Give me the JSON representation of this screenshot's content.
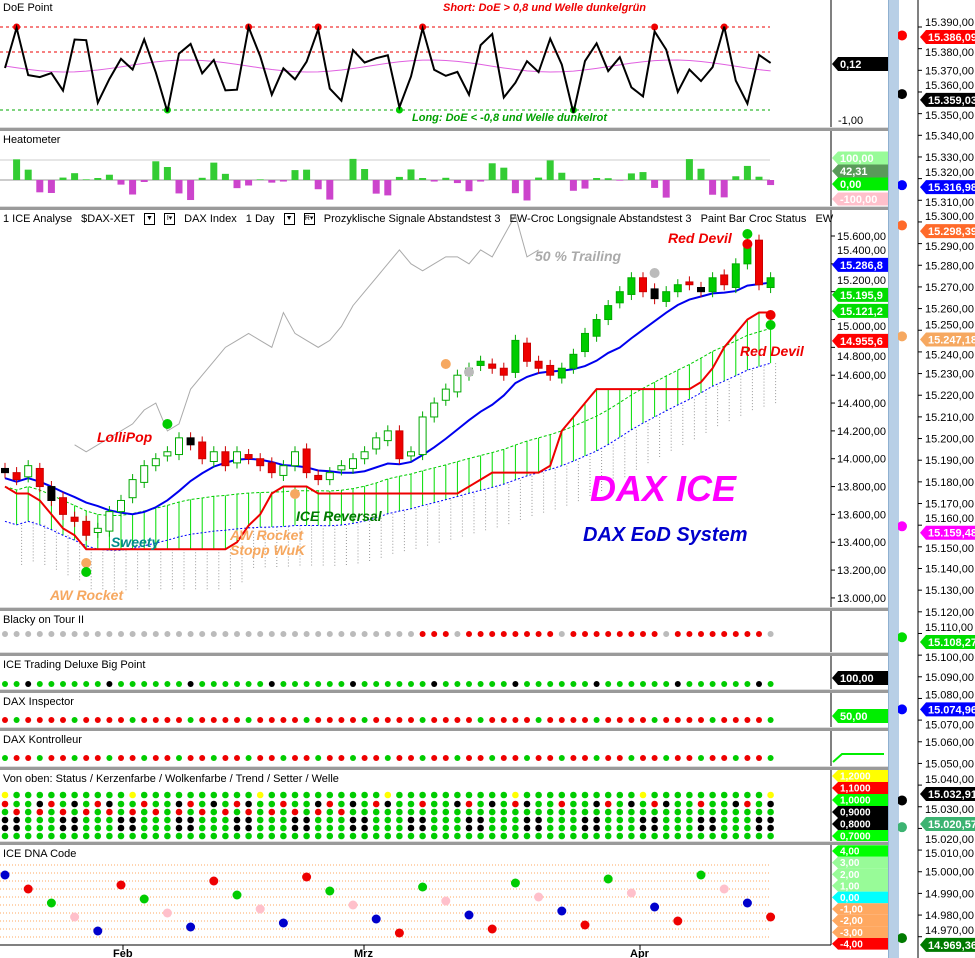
{
  "panels": {
    "doe": {
      "title": "DoE Point",
      "short": "Short: DoE > 0,8 und Welle dunkelgrün",
      "long": "Long: DoE < -0,8 und Welle dunkelrot",
      "badge": "0,12",
      "tick": "-1,00"
    },
    "heat": {
      "title": "Heatometer",
      "badges": [
        "100,00",
        "42,31",
        "0,00",
        "-100,00"
      ]
    },
    "blacky": {
      "title": "Blacky on Tour II"
    },
    "bigpoint": {
      "title": "ICE Trading Deluxe Big Point",
      "badge": "100,00"
    },
    "inspector": {
      "title": "DAX Inspector",
      "badge": "50,00"
    },
    "kontrolleur": {
      "title": "DAX Kontrolleur"
    },
    "vonoben": {
      "title": "Von oben: Status / Kerzenfarbe / Wolkenfarbe / Trend / Setter / Welle",
      "badges": [
        {
          "t": "1,2000",
          "c": "#ffff00"
        },
        {
          "t": "1,1000",
          "c": "#ff0000"
        },
        {
          "t": "1,0000",
          "c": "#00ff00"
        },
        {
          "t": "0,9000",
          "c": "#000000"
        },
        {
          "t": "0,8000",
          "c": "#000000"
        },
        {
          "t": "0,7000",
          "c": "#00ff00"
        }
      ]
    },
    "dna": {
      "title": "ICE DNA Code",
      "badges": [
        {
          "t": "4,00",
          "c": "#00ff00"
        },
        {
          "t": "3,00",
          "c": "#98fb98"
        },
        {
          "t": "2,00",
          "c": "#98fb98"
        },
        {
          "t": "1,00",
          "c": "#98fb98"
        },
        {
          "t": "0,00",
          "c": "#00ffff"
        },
        {
          "t": "-1,00",
          "c": "#ffa860"
        },
        {
          "t": "-2,00",
          "c": "#ffa860"
        },
        {
          "t": "-3,00",
          "c": "#ffa860"
        },
        {
          "t": "-4,00",
          "c": "#ff0000"
        }
      ]
    }
  },
  "toolbar": {
    "items": [
      "1 ICE Analyse",
      "$DAX-XET",
      "DAX Index",
      "1 Day",
      "Prozyklische Signale Abstandstest 3",
      "EW-Croc Longsignale Abstandstest 3",
      "Paint Bar Croc Status",
      "EW"
    ]
  },
  "annotations": {
    "red_devil_top": "Red Devil",
    "red_devil_right": "Red Devil",
    "trailing": "50 % Trailing",
    "lollipop": "LolliPop",
    "sweety": "Sweety",
    "aw_rocket": "AW Rocket",
    "aw_rocket_stopp": "AW Rocket",
    "stopp_wuk": "Stopp WuK",
    "ice_reversal": "ICE Reversal",
    "dax_ice": "DAX ICE",
    "dax_eod": "DAX EoD System"
  },
  "main_axis": {
    "ticks": [
      "15.600,00",
      "15.400,00",
      "15.200,00",
      "15.000,00",
      "14.800,00",
      "14.600,00",
      "14.400,00",
      "14.200,00",
      "14.000,00",
      "13.800,00",
      "13.600,00",
      "13.400,00",
      "13.200,00",
      "13.000,00"
    ],
    "badges": [
      {
        "t": "15.286,8",
        "c": "#0000ff",
        "v": 15286.8
      },
      {
        "t": "15.195,9",
        "c": "#00dd00",
        "v": 15195.9
      },
      {
        "t": "15.121,2",
        "c": "#00dd00",
        "v": 15121.2
      },
      {
        "t": "14.955,6",
        "c": "#ff0000",
        "v": 14955.6
      }
    ]
  },
  "x_axis": {
    "labels": [
      "Feb",
      "Mrz",
      "Apr"
    ]
  },
  "right_axis": {
    "ticks": [
      "15.390,00",
      "15.380,00",
      "15.370,00",
      "15.360,00",
      "15.350,00",
      "15.340,00",
      "15.330,00",
      "15.320,00",
      "15.310,00",
      "15.300,00",
      "15.290,00",
      "15.280,00",
      "15.270,00",
      "15.260,00",
      "15.250,00",
      "15.240,00",
      "15.230,00",
      "15.220,00",
      "15.210,00",
      "15.200,00",
      "15.190,00",
      "15.180,00",
      "15.170,00",
      "15.160,00",
      "15.150,00",
      "15.140,00",
      "15.130,00",
      "15.120,00",
      "15.110,00",
      "15.100,00",
      "15.090,00",
      "15.080,00",
      "15.070,00",
      "15.060,00",
      "15.050,00",
      "15.040,00",
      "15.030,00",
      "15.020,00",
      "15.010,00",
      "15.000,00",
      "14.990,00",
      "14.980,00",
      "14.970,00"
    ],
    "levels": [
      {
        "t": "15.386,09",
        "c": "#ff0000",
        "v": 15386.09
      },
      {
        "t": "15.359,03",
        "c": "#000000",
        "v": 15359.03
      },
      {
        "t": "15.316,98",
        "c": "#0000ff",
        "v": 15316.98
      },
      {
        "t": "15.298,39",
        "c": "#ff6a2a",
        "v": 15298.39
      },
      {
        "t": "15.247,18",
        "c": "#f6a860",
        "v": 15247.18
      },
      {
        "t": "15.159,48",
        "c": "#ff00ff",
        "v": 15159.48
      },
      {
        "t": "15.108,27",
        "c": "#00dd00",
        "v": 15108.27
      },
      {
        "t": "15.074,96",
        "c": "#0000ff",
        "v": 15074.96
      },
      {
        "t": "15.032,91",
        "c": "#000000",
        "v": 15032.91
      },
      {
        "t": "15.020,57",
        "c": "#3cb371",
        "v": 15020.57
      },
      {
        "t": "14.969,36",
        "c": "#007a00",
        "v": 14969.36
      }
    ]
  },
  "chart_data": {
    "type": "candlestick",
    "title": "",
    "xlabel": "",
    "ylabel": "",
    "x_labels": [
      "Feb",
      "Mrz",
      "Apr"
    ],
    "ylim": [
      13000,
      15600
    ],
    "close": [
      13900,
      13850,
      13950,
      13800,
      13700,
      13600,
      13550,
      13450,
      13500,
      13620,
      13700,
      13850,
      13950,
      14000,
      14050,
      14150,
      14100,
      14000,
      14050,
      13950,
      14050,
      14000,
      13950,
      13900,
      13950,
      14050,
      13900,
      13850,
      13900,
      13950,
      14000,
      14050,
      14150,
      14200,
      14000,
      14050,
      14300,
      14400,
      14500,
      14600,
      14650,
      14700,
      14650,
      14600,
      14850,
      14700,
      14650,
      14600,
      14650,
      14750,
      14900,
      15000,
      15100,
      15200,
      15300,
      15200,
      15150,
      15200,
      15250,
      15250,
      15200,
      15300,
      15250,
      15400,
      15550,
      15250,
      15300
    ],
    "grid": false
  }
}
